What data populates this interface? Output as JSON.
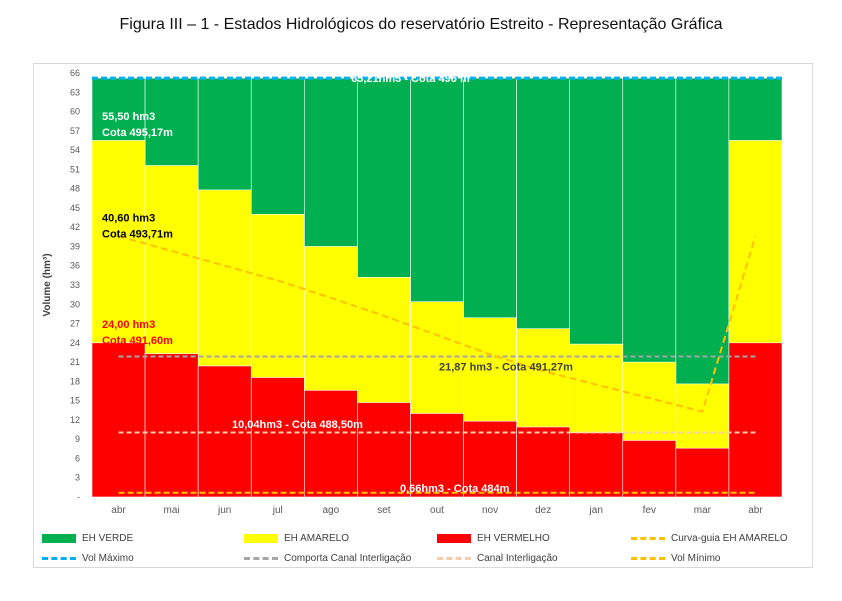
{
  "title": "Figura III – 1 - Estados Hidrológicos do reservatório Estreito - Representação Gráfica",
  "chart_data": {
    "type": "area",
    "ylabel": "Volume (hm³)",
    "xlabel": "",
    "ylim": [
      0,
      66
    ],
    "yticks": [
      "-",
      "3",
      "6",
      "9",
      "12",
      "15",
      "18",
      "21",
      "24",
      "27",
      "30",
      "33",
      "36",
      "39",
      "42",
      "45",
      "48",
      "51",
      "54",
      "57",
      "60",
      "63",
      "66"
    ],
    "categories": [
      "abr",
      "mai",
      "jun",
      "jul",
      "ago",
      "set",
      "out",
      "nov",
      "dez",
      "jan",
      "fev",
      "mar",
      "abr"
    ],
    "series": [
      {
        "name": "EH VERDE",
        "color": "#00b050",
        "values": [
          65.21,
          65.21,
          65.21,
          65.21,
          65.21,
          65.21,
          65.21,
          65.21,
          65.21,
          65.21,
          65.21,
          65.21,
          65.21
        ]
      },
      {
        "name": "EH AMARELO",
        "color": "#ffff00",
        "values": [
          55.5,
          51.6,
          47.8,
          44.0,
          39.0,
          34.2,
          30.4,
          27.9,
          26.2,
          23.8,
          21.0,
          17.6,
          55.5
        ]
      },
      {
        "name": "EH VERMELHO",
        "color": "#ff0000",
        "values": [
          24.0,
          22.3,
          20.4,
          18.6,
          16.6,
          14.7,
          13.0,
          11.8,
          10.9,
          10.0,
          8.8,
          7.6,
          24.0
        ]
      },
      {
        "name": "Curva-guia EH AMARELO",
        "color": "#ffc000",
        "values": [
          40.6,
          38.3,
          36.0,
          33.7,
          31.0,
          28.2,
          25.2,
          22.2,
          19.6,
          17.5,
          15.4,
          13.3,
          40.6
        ]
      },
      {
        "name": "Vol Máximo",
        "color": "#00b0f0",
        "values": [
          65.21,
          65.21,
          65.21,
          65.21,
          65.21,
          65.21,
          65.21,
          65.21,
          65.21,
          65.21,
          65.21,
          65.21,
          65.21
        ]
      },
      {
        "name": "Comporta Canal Interligação",
        "color": "#a6a6a6",
        "values": [
          21.87,
          21.87,
          21.87,
          21.87,
          21.87,
          21.87,
          21.87,
          21.87,
          21.87,
          21.87,
          21.87,
          21.87,
          21.87
        ]
      },
      {
        "name": "Canal Interligação",
        "color": "#f8cbad",
        "values": [
          10.04,
          10.04,
          10.04,
          10.04,
          10.04,
          10.04,
          10.04,
          10.04,
          10.04,
          10.04,
          10.04,
          10.04,
          10.04
        ]
      },
      {
        "name": "Vol Mínimo",
        "color": "#ffc000",
        "values": [
          0.66,
          0.66,
          0.66,
          0.66,
          0.66,
          0.66,
          0.66,
          0.66,
          0.66,
          0.66,
          0.66,
          0.66,
          0.66
        ]
      }
    ],
    "annotations": [
      {
        "lines": [
          "65,21hm3 - Cota 496 m"
        ],
        "color": "#ffffff",
        "at_y": 65.2,
        "align": "center",
        "near": "jul–dez"
      },
      {
        "lines": [
          "55,50 hm3",
          "Cota  495,17m"
        ],
        "color": "#ffffff",
        "at_y": 59.3,
        "near": "abr"
      },
      {
        "lines": [
          "40,60 hm3",
          "Cota 493,71m"
        ],
        "color": "#000000",
        "at_y": 43.5,
        "near": "abr"
      },
      {
        "lines": [
          "24,00 hm3",
          "Cota 491,60m"
        ],
        "color": "#ff0000",
        "at_y": 26.9,
        "near": "abr"
      },
      {
        "lines": [
          "21,87 hm3 - Cota 491,27m"
        ],
        "color": "#404040",
        "at_y": 20.3,
        "near": "nov"
      },
      {
        "lines": [
          "10,04hm3 - Cota 488,50m"
        ],
        "color": "#ffffff",
        "at_y": 11.4,
        "near": "ago"
      },
      {
        "lines": [
          "0,66hm3 - Cota 484m"
        ],
        "color": "#ffffff",
        "at_y": 1.4,
        "near": "out–nov"
      }
    ],
    "legend_position": "bottom"
  },
  "legend": [
    {
      "name": "EH VERDE",
      "kind": "box",
      "color": "#00b050"
    },
    {
      "name": "EH AMARELO",
      "kind": "box",
      "color": "#ffff00"
    },
    {
      "name": "EH VERMELHO",
      "kind": "box",
      "color": "#ff0000"
    },
    {
      "name": "Curva-guia EH AMARELO",
      "kind": "dash",
      "color": "#ffc000"
    },
    {
      "name": "Vol Máximo",
      "kind": "dash",
      "color": "#00b0f0"
    },
    {
      "name": "Comporta Canal Interligação",
      "kind": "dash",
      "color": "#a6a6a6"
    },
    {
      "name": "Canal Interligação",
      "kind": "dash",
      "color": "#f8cbad"
    },
    {
      "name": "Vol Mínimo",
      "kind": "dash",
      "color": "#ffc000"
    }
  ]
}
